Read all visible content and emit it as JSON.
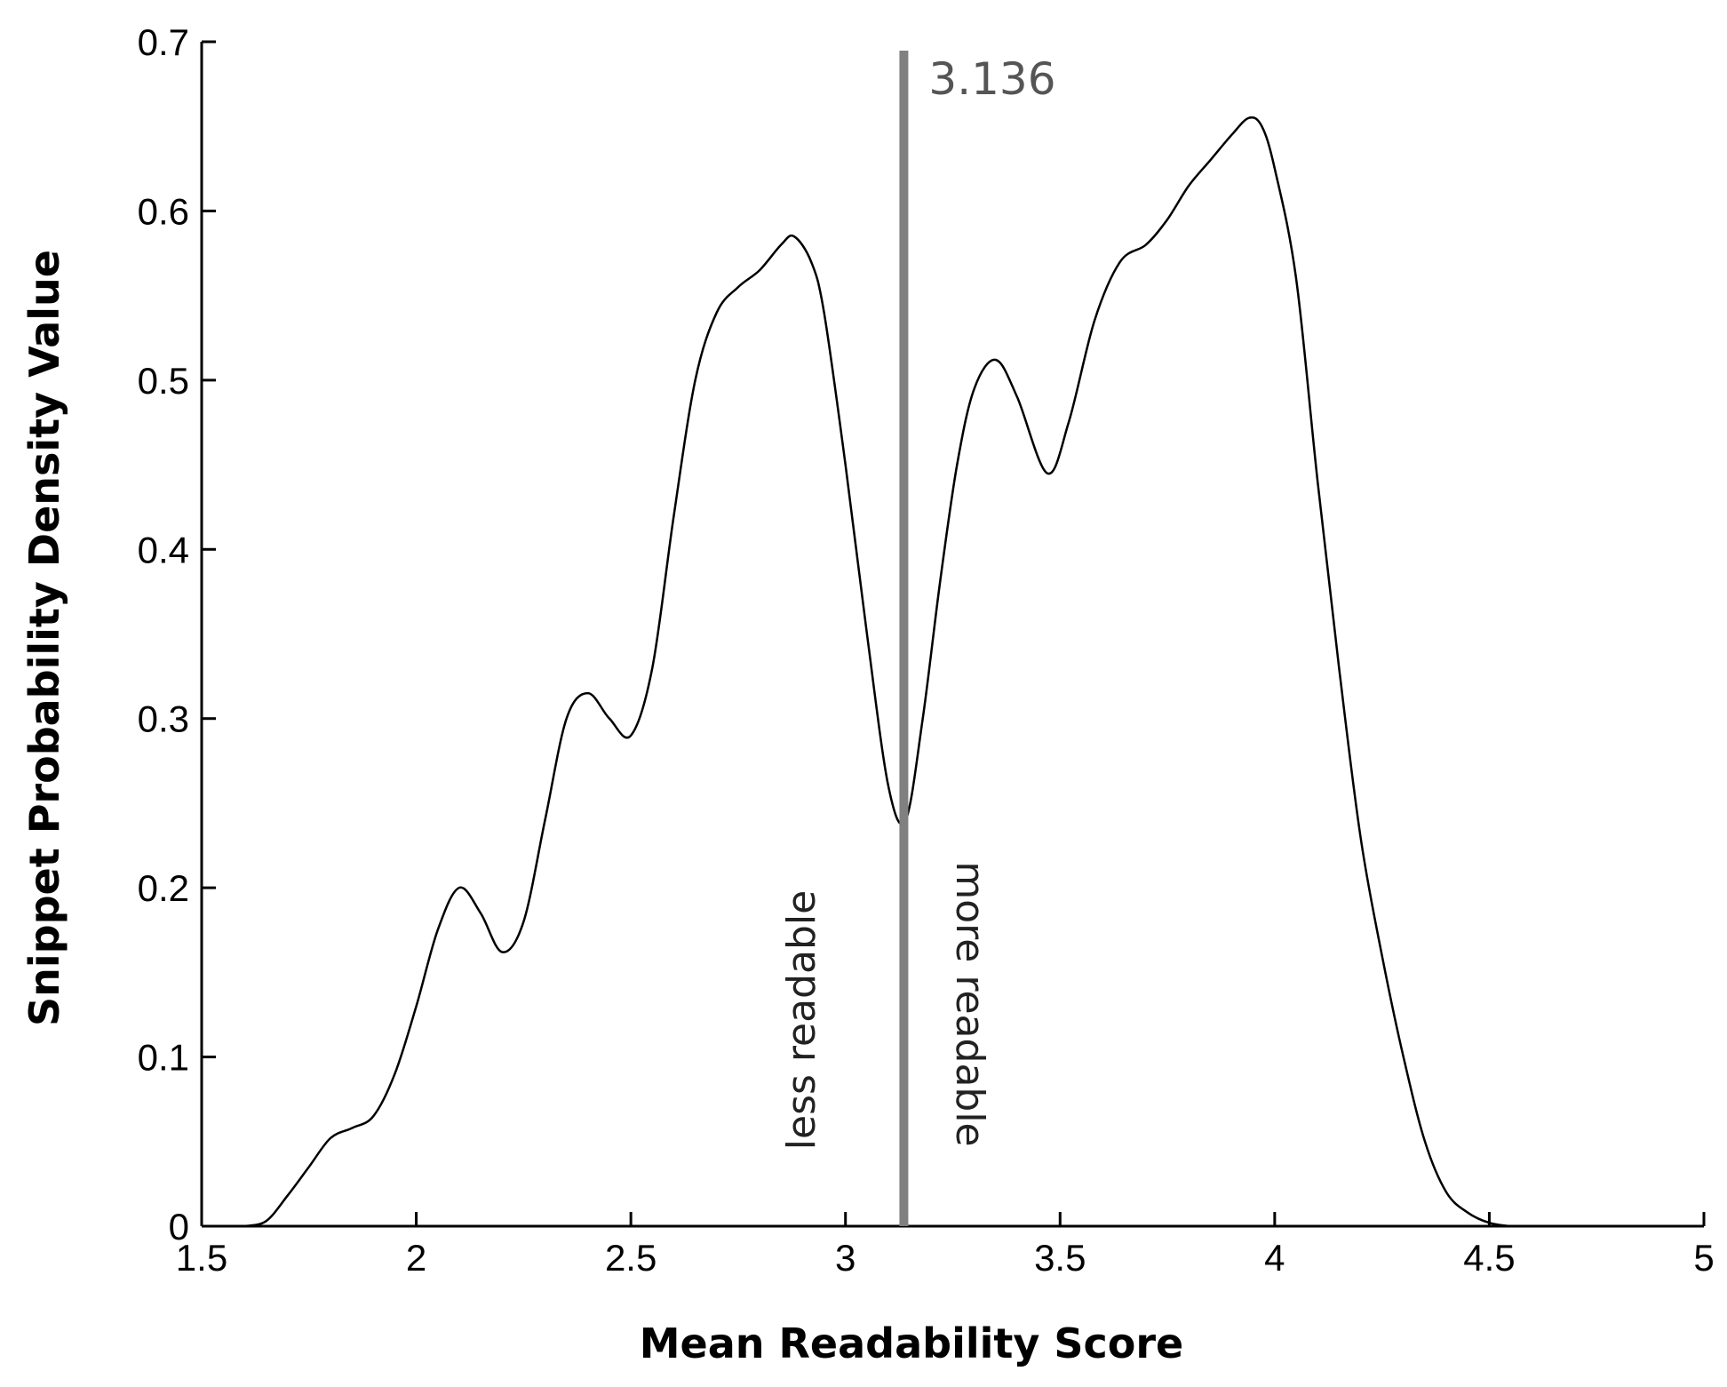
{
  "chart_data": {
    "type": "line",
    "title": "",
    "xlabel": "Mean Readability Score",
    "ylabel": "Snippet Probability Density Value",
    "xlim": [
      1.5,
      5
    ],
    "ylim": [
      0,
      0.7
    ],
    "x_ticks": [
      1.5,
      2,
      2.5,
      3,
      3.5,
      4,
      4.5,
      5
    ],
    "x_tick_labels": [
      "1.5",
      "2",
      "2.5",
      "3",
      "3.5",
      "4",
      "4.5",
      "5"
    ],
    "y_ticks": [
      0,
      0.1,
      0.2,
      0.3,
      0.4,
      0.5,
      0.6,
      0.7
    ],
    "y_tick_labels": [
      "0",
      "0.1",
      "0.2",
      "0.3",
      "0.4",
      "0.5",
      "0.6",
      "0.7"
    ],
    "grid": false,
    "series_color": "#000000",
    "series": [
      {
        "x": [
          1.6,
          1.65,
          1.7,
          1.75,
          1.8,
          1.85,
          1.9,
          1.95,
          2.0,
          2.05,
          2.1,
          2.15,
          2.2,
          2.25,
          2.3,
          2.35,
          2.4,
          2.45,
          2.5,
          2.55,
          2.6,
          2.65,
          2.7,
          2.75,
          2.8,
          2.85,
          2.88,
          2.92,
          2.95,
          3.0,
          3.05,
          3.1,
          3.14,
          3.18,
          3.22,
          3.26,
          3.3,
          3.35,
          3.4,
          3.47,
          3.52,
          3.58,
          3.64,
          3.7,
          3.75,
          3.8,
          3.85,
          3.9,
          3.94,
          3.97,
          4.0,
          4.05,
          4.1,
          4.15,
          4.2,
          4.25,
          4.3,
          4.35,
          4.4,
          4.45,
          4.5,
          4.55,
          4.58
        ],
        "y": [
          0.0,
          0.003,
          0.018,
          0.035,
          0.052,
          0.058,
          0.065,
          0.09,
          0.13,
          0.175,
          0.2,
          0.185,
          0.162,
          0.18,
          0.24,
          0.3,
          0.315,
          0.3,
          0.29,
          0.33,
          0.42,
          0.5,
          0.54,
          0.555,
          0.565,
          0.58,
          0.585,
          0.57,
          0.54,
          0.45,
          0.35,
          0.26,
          0.24,
          0.3,
          0.38,
          0.45,
          0.495,
          0.512,
          0.49,
          0.445,
          0.475,
          0.535,
          0.57,
          0.58,
          0.595,
          0.615,
          0.63,
          0.645,
          0.655,
          0.65,
          0.625,
          0.56,
          0.44,
          0.33,
          0.23,
          0.16,
          0.1,
          0.05,
          0.02,
          0.008,
          0.002,
          0.0,
          0.0
        ]
      }
    ],
    "threshold": {
      "x": 3.136,
      "label": "3.136",
      "color": "#808080"
    },
    "annotations": [
      {
        "text": "less readable"
      },
      {
        "text": "more readable"
      }
    ]
  }
}
